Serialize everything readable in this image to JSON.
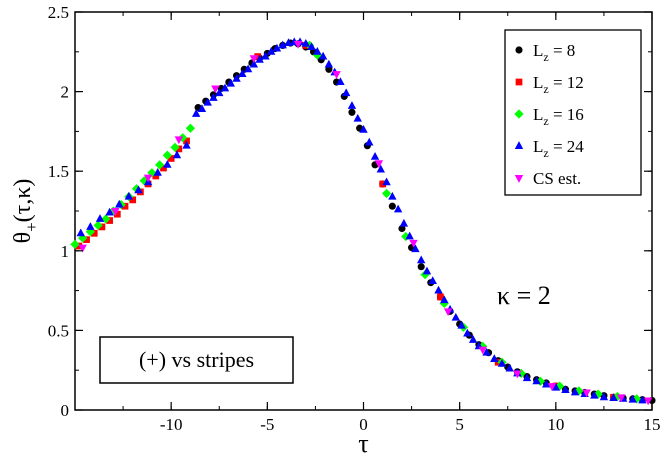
{
  "chart_data": {
    "type": "scatter",
    "xlabel": "τ",
    "ylabel": {
      "base": "θ",
      "sub": "+",
      "args": "(τ,κ)"
    },
    "xlim": [
      -15,
      15
    ],
    "ylim": [
      0,
      2.5
    ],
    "x_ticks": [
      -10,
      -5,
      0,
      5,
      10,
      15
    ],
    "x_tick_labels": [
      "-10",
      "-5",
      "0",
      "5",
      "10",
      "15"
    ],
    "y_ticks": [
      0,
      0.5,
      1,
      1.5,
      2,
      2.5
    ],
    "y_tick_labels": [
      "0",
      "0.5",
      "1",
      "1.5",
      "2",
      "2.5"
    ],
    "grid": false,
    "legend_position": "top-right",
    "annotations": {
      "kappa": {
        "symbol": "κ",
        "text": " = 2"
      },
      "box_label": "(+) vs stripes"
    },
    "series": [
      {
        "name": "Lz8",
        "label": {
          "base": "L",
          "sub": "z",
          "rest": " = 8"
        },
        "marker": "circle",
        "color": "#000000",
        "x": [
          -8.6,
          -8.2,
          -7.8,
          -7.4,
          -7.0,
          -6.6,
          -6.2,
          -5.8,
          -5.4,
          -5.0,
          -4.6,
          -4.2,
          -3.8,
          -3.4,
          -3.0,
          -2.6,
          -2.2,
          -1.8,
          -1.4,
          -1.0,
          -0.6,
          -0.2,
          0.2,
          0.6,
          1.0,
          1.5,
          2.0,
          2.5,
          3.0,
          3.5,
          4.0,
          4.5,
          5.0,
          5.5,
          6.0,
          6.5,
          7.0,
          7.5,
          8.0,
          8.5,
          9.0,
          9.5,
          10.0,
          10.5,
          11.0,
          11.5,
          12.0,
          12.5,
          13.0,
          13.5,
          14.0,
          14.5,
          15.0
        ],
        "y": [
          1.9,
          1.94,
          1.98,
          2.02,
          2.06,
          2.1,
          2.14,
          2.18,
          2.21,
          2.24,
          2.27,
          2.29,
          2.305,
          2.3,
          2.28,
          2.25,
          2.2,
          2.14,
          2.06,
          1.97,
          1.87,
          1.77,
          1.66,
          1.54,
          1.42,
          1.28,
          1.14,
          1.02,
          0.9,
          0.8,
          0.71,
          0.62,
          0.54,
          0.47,
          0.41,
          0.36,
          0.31,
          0.27,
          0.24,
          0.21,
          0.19,
          0.17,
          0.15,
          0.13,
          0.12,
          0.11,
          0.1,
          0.09,
          0.08,
          0.075,
          0.07,
          0.065,
          0.06
        ]
      },
      {
        "name": "Lz12",
        "label": {
          "base": "L",
          "sub": "z",
          "rest": " = 12"
        },
        "marker": "square",
        "color": "#ff0000",
        "x": [
          -14.8,
          -14.4,
          -14.0,
          -13.6,
          -13.2,
          -12.8,
          -12.4,
          -12.0,
          -11.6,
          -11.2,
          -10.8,
          -10.4,
          -10.0,
          -9.6,
          -9.2,
          -5.5,
          -3.0,
          1.0,
          4.0,
          7.0,
          10.0,
          13.0
        ],
        "y": [
          1.03,
          1.07,
          1.11,
          1.15,
          1.19,
          1.23,
          1.28,
          1.32,
          1.37,
          1.42,
          1.47,
          1.52,
          1.58,
          1.64,
          1.69,
          2.22,
          2.29,
          1.42,
          0.71,
          0.3,
          0.15,
          0.08
        ]
      },
      {
        "name": "Lz16",
        "label": {
          "base": "L",
          "sub": "z",
          "rest": " = 16"
        },
        "marker": "diamond",
        "color": "#00ff00",
        "x": [
          -15.0,
          -14.6,
          -14.2,
          -13.8,
          -13.4,
          -13.0,
          -12.6,
          -12.2,
          -11.8,
          -11.4,
          -11.0,
          -10.6,
          -10.2,
          -9.8,
          -9.4,
          -9.0,
          -2.8,
          -2.4,
          1.2,
          2.2,
          3.2,
          4.2,
          5.2,
          6.2,
          7.2,
          8.2,
          9.2,
          10.2,
          11.2,
          12.2,
          13.2,
          14.2
        ],
        "y": [
          1.04,
          1.08,
          1.12,
          1.16,
          1.2,
          1.25,
          1.29,
          1.34,
          1.39,
          1.44,
          1.49,
          1.54,
          1.6,
          1.65,
          1.71,
          1.77,
          2.29,
          2.23,
          1.36,
          1.09,
          0.85,
          0.67,
          0.52,
          0.4,
          0.3,
          0.23,
          0.18,
          0.15,
          0.12,
          0.1,
          0.085,
          0.07
        ]
      },
      {
        "name": "Lz24",
        "label": {
          "base": "L",
          "sub": "z",
          "rest": " = 24"
        },
        "marker": "triangle-up",
        "color": "#0000ff",
        "x": [
          -14.7,
          -14.2,
          -13.7,
          -13.2,
          -12.7,
          -12.2,
          -11.7,
          -11.2,
          -10.7,
          -10.2,
          -9.7,
          -9.2,
          -8.7,
          -8.4,
          -8.1,
          -7.8,
          -7.5,
          -7.2,
          -6.9,
          -6.6,
          -6.3,
          -6.0,
          -5.7,
          -5.4,
          -5.1,
          -4.8,
          -4.5,
          -4.2,
          -3.9,
          -3.6,
          -3.3,
          -3.0,
          -2.7,
          -2.4,
          -2.1,
          -1.8,
          -1.5,
          -1.2,
          -0.9,
          -0.6,
          -0.3,
          0.0,
          0.3,
          0.6,
          0.9,
          1.2,
          1.5,
          1.8,
          2.1,
          2.4,
          2.7,
          3.0,
          3.3,
          3.6,
          3.9,
          4.2,
          4.5,
          4.8,
          5.1,
          5.4,
          5.7,
          6.0,
          6.4,
          6.8,
          7.2,
          7.6,
          8.0,
          8.5,
          9.0,
          9.5,
          10.0,
          10.5,
          11.0,
          11.5,
          12.0,
          12.5,
          13.0,
          13.5,
          14.0,
          14.5
        ],
        "y": [
          1.11,
          1.15,
          1.2,
          1.24,
          1.29,
          1.34,
          1.38,
          1.43,
          1.49,
          1.54,
          1.6,
          1.66,
          1.86,
          1.89,
          1.93,
          1.96,
          1.99,
          2.02,
          2.05,
          2.08,
          2.11,
          2.14,
          2.17,
          2.2,
          2.22,
          2.25,
          2.27,
          2.29,
          2.305,
          2.31,
          2.31,
          2.3,
          2.28,
          2.25,
          2.22,
          2.17,
          2.12,
          2.06,
          1.99,
          1.91,
          1.83,
          1.76,
          1.68,
          1.59,
          1.51,
          1.43,
          1.34,
          1.26,
          1.17,
          1.09,
          1.01,
          0.94,
          0.87,
          0.81,
          0.75,
          0.69,
          0.63,
          0.58,
          0.53,
          0.48,
          0.44,
          0.4,
          0.36,
          0.32,
          0.29,
          0.26,
          0.23,
          0.2,
          0.18,
          0.16,
          0.14,
          0.125,
          0.11,
          0.1,
          0.09,
          0.08,
          0.075,
          0.07,
          0.065,
          0.06
        ]
      },
      {
        "name": "CS",
        "label": {
          "base": "CS est.",
          "sub": "",
          "rest": ""
        },
        "marker": "triangle-down",
        "color": "#ff00ff",
        "x": [
          -14.6,
          -12.9,
          -11.2,
          -9.6,
          -7.7,
          -5.7,
          -3.4,
          -1.4,
          0.8,
          2.6,
          4.4,
          6.2,
          8.0,
          9.8,
          11.6,
          13.4,
          14.8
        ],
        "y": [
          1.02,
          1.25,
          1.46,
          1.7,
          2.02,
          2.21,
          2.3,
          2.11,
          1.55,
          1.05,
          0.62,
          0.38,
          0.23,
          0.15,
          0.11,
          0.08,
          0.06
        ]
      }
    ]
  }
}
